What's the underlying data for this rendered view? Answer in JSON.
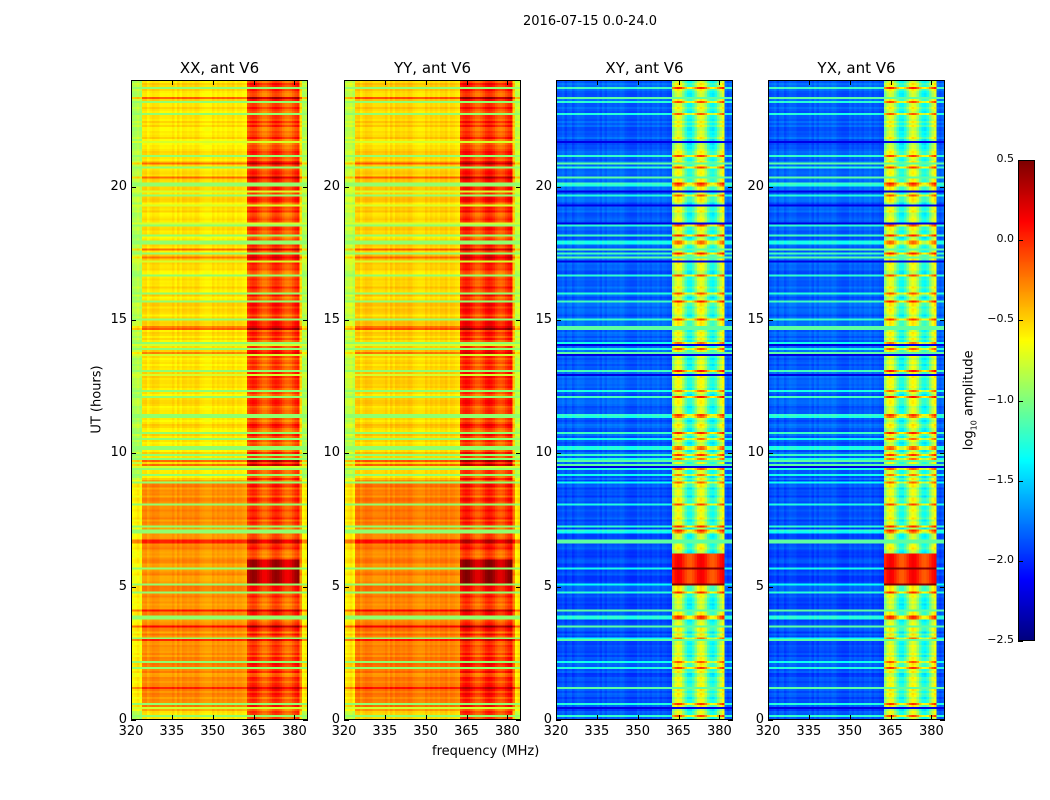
{
  "chart_data": {
    "type": "heatmap",
    "title": "2016-07-15 0.0-24.0",
    "xlabel": "frequency (MHz)",
    "ylabel": "UT (hours)",
    "xlim": [
      320,
      385
    ],
    "ylim": [
      0,
      24
    ],
    "xticks": [
      "320",
      "335",
      "350",
      "365",
      "380"
    ],
    "xtick_values": [
      320,
      335,
      350,
      365,
      380
    ],
    "yticks": [
      "0",
      "5",
      "10",
      "15",
      "20"
    ],
    "ytick_values": [
      0,
      5,
      10,
      15,
      20
    ],
    "colormap": "jet",
    "colorbar": {
      "label_main": "log",
      "label_sub": "10",
      "label_rest": " amplitude",
      "range": [
        -2.5,
        0.5
      ],
      "ticks": [
        "0.5",
        "0.0",
        "−0.5",
        "−1.0",
        "−1.5",
        "−2.0",
        "−2.5"
      ],
      "tick_values": [
        0.5,
        0.0,
        -0.5,
        -1.0,
        -1.5,
        -2.0,
        -2.5
      ]
    },
    "panels": [
      {
        "title": "XX, ant V6",
        "base_level": -0.55,
        "band_level": -0.1,
        "band_mhz": [
          363,
          382
        ],
        "early_offset": 0.25,
        "burst_hours": [
          5,
          6
        ],
        "burst_level": 0.3
      },
      {
        "title": "YY, ant V6",
        "base_level": -0.5,
        "band_level": -0.05,
        "band_mhz": [
          363,
          382
        ],
        "early_offset": 0.25,
        "burst_hours": [
          5,
          6
        ],
        "burst_level": 0.35
      },
      {
        "title": "XY, ant V6",
        "base_level": -1.85,
        "band_level": -1.0,
        "band_mhz": [
          363,
          382
        ],
        "early_offset": -0.05,
        "burst_hours": [
          5,
          6.2
        ],
        "burst_level": 0.0
      },
      {
        "title": "YX, ant V6",
        "base_level": -1.85,
        "band_level": -1.0,
        "band_mhz": [
          363,
          382
        ],
        "early_offset": -0.05,
        "burst_hours": [
          5,
          6.2
        ],
        "burst_level": 0.0
      }
    ]
  }
}
